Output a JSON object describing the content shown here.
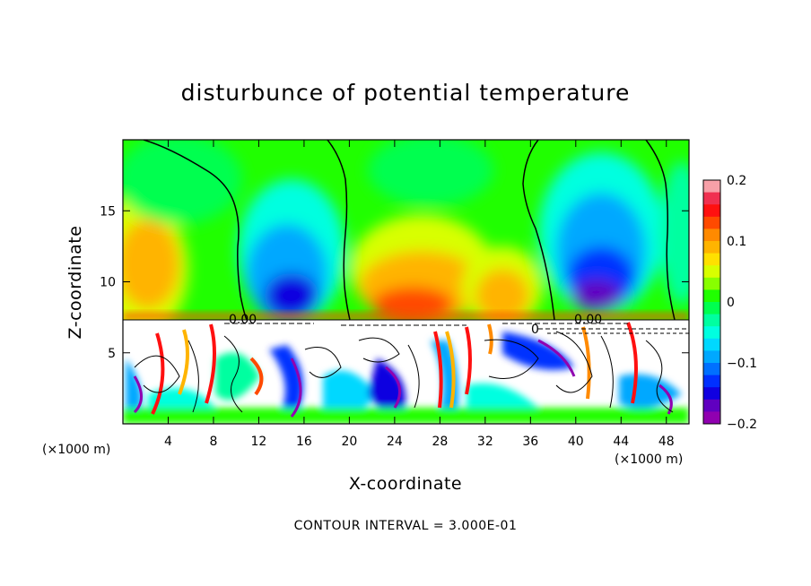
{
  "chart_data": {
    "type": "heatmap",
    "title": "disturbunce of potential temperature",
    "xlabel": "X-coordinate",
    "ylabel": "Z-coordinate",
    "x_unit_left": "(×1000 m)",
    "x_unit_right": "(×1000 m)",
    "x_ticks": [
      4,
      8,
      12,
      16,
      20,
      24,
      28,
      32,
      36,
      40,
      44,
      48
    ],
    "y_ticks": [
      5,
      10,
      15
    ],
    "xlim": [
      0,
      50
    ],
    "ylim": [
      0,
      20
    ],
    "colorbar": {
      "range": [
        -0.2,
        0.2
      ],
      "tick_values": [
        0.2,
        0.1,
        0,
        -0.1,
        -0.2
      ],
      "tick_labels": [
        "0.2",
        "0.1",
        "0",
        "−0.1",
        "−0.2"
      ],
      "colors": [
        "#f7a0a8",
        "#f03050",
        "#ff1010",
        "#ff4a00",
        "#ff8a00",
        "#ffb400",
        "#ffe000",
        "#d8ff00",
        "#88ff00",
        "#20ff00",
        "#00ff50",
        "#00ffa0",
        "#00ffe0",
        "#00d8ff",
        "#00a8ff",
        "#0070ff",
        "#0030ff",
        "#1000e0",
        "#6000c0",
        "#9000b0"
      ]
    },
    "contour_labels": [
      "0.00",
      "0.00",
      "0"
    ],
    "footnote": "CONTOUR INTERVAL = 3.000E-01"
  }
}
